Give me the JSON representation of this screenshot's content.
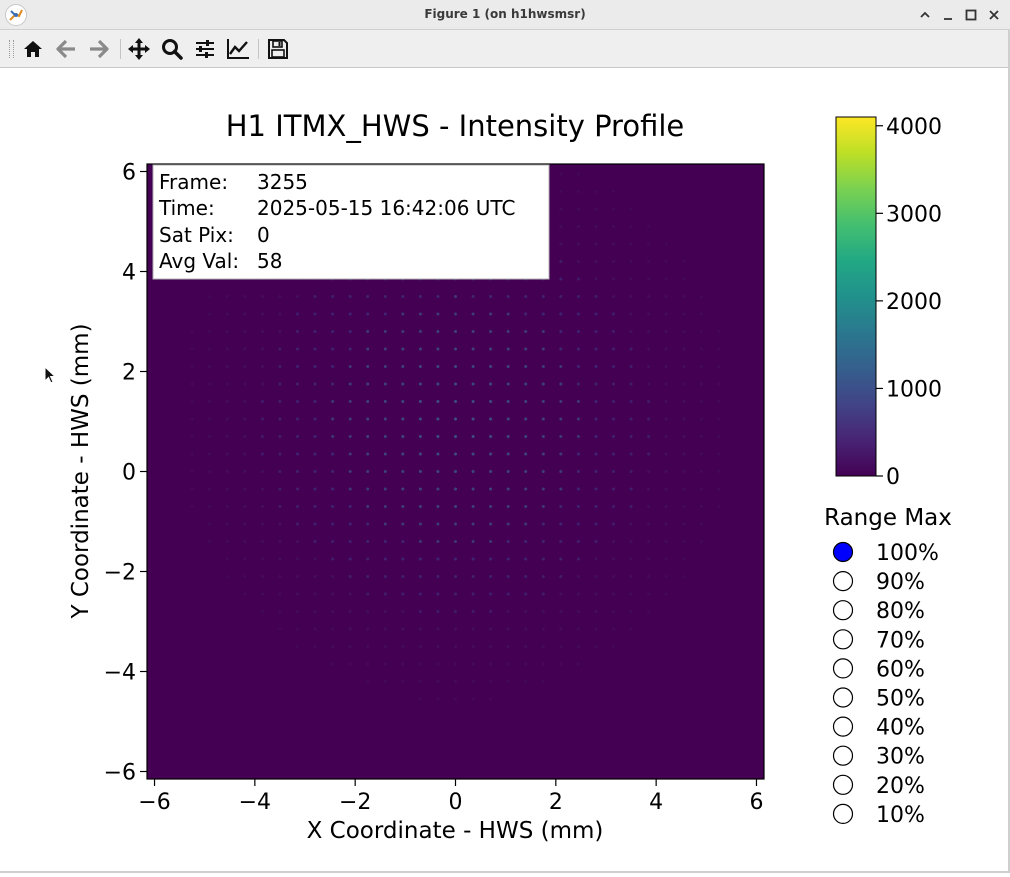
{
  "window": {
    "title": "Figure 1 (on h1hwsmsr)"
  },
  "toolbar": {
    "tools": [
      "home-icon",
      "back-icon",
      "forward-icon",
      "pan-icon",
      "zoom-icon",
      "configure-subplots-icon",
      "edit-axis-icon",
      "save-icon"
    ]
  },
  "chart_data": {
    "type": "heatmap",
    "title": "H1 ITMX_HWS - Intensity Profile",
    "xlabel": "X Coordinate - HWS (mm)",
    "ylabel": "Y Coordinate - HWS (mm)",
    "xlim": [
      -6.15,
      6.15
    ],
    "ylim": [
      -6.15,
      6.15
    ],
    "xticks": [
      -6,
      -4,
      -2,
      0,
      2,
      4,
      6
    ],
    "yticks": [
      -6,
      -4,
      -2,
      0,
      2,
      4,
      6
    ],
    "xtick_labels": [
      "−6",
      "−4",
      "−2",
      "0",
      "2",
      "4",
      "6"
    ],
    "ytick_labels": [
      "−6",
      "−4",
      "−2",
      "0",
      "2",
      "4",
      "6"
    ],
    "background_color": "#440154",
    "spot_pitch_mm": 0.35,
    "spot_region_radius_mm": 5.6,
    "colormap": "viridis",
    "colorbar": {
      "min": 0,
      "max": 4100,
      "ticks": [
        0,
        1000,
        2000,
        3000,
        4000
      ],
      "tick_labels": [
        "0",
        "1000",
        "2000",
        "3000",
        "4000"
      ]
    },
    "info_box": [
      {
        "label": "Frame:",
        "value": "3255"
      },
      {
        "label": "Time:",
        "value": "2025-05-15 16:42:06 UTC"
      },
      {
        "label": "Sat Pix:",
        "value": "0"
      },
      {
        "label": "Avg Val:",
        "value": "58"
      }
    ]
  },
  "range_max": {
    "title": "Range Max",
    "options": [
      "100%",
      "90%",
      "80%",
      "70%",
      "60%",
      "50%",
      "40%",
      "30%",
      "20%",
      "10%"
    ],
    "selected_index": 0,
    "selected_color": "#0000ff"
  }
}
